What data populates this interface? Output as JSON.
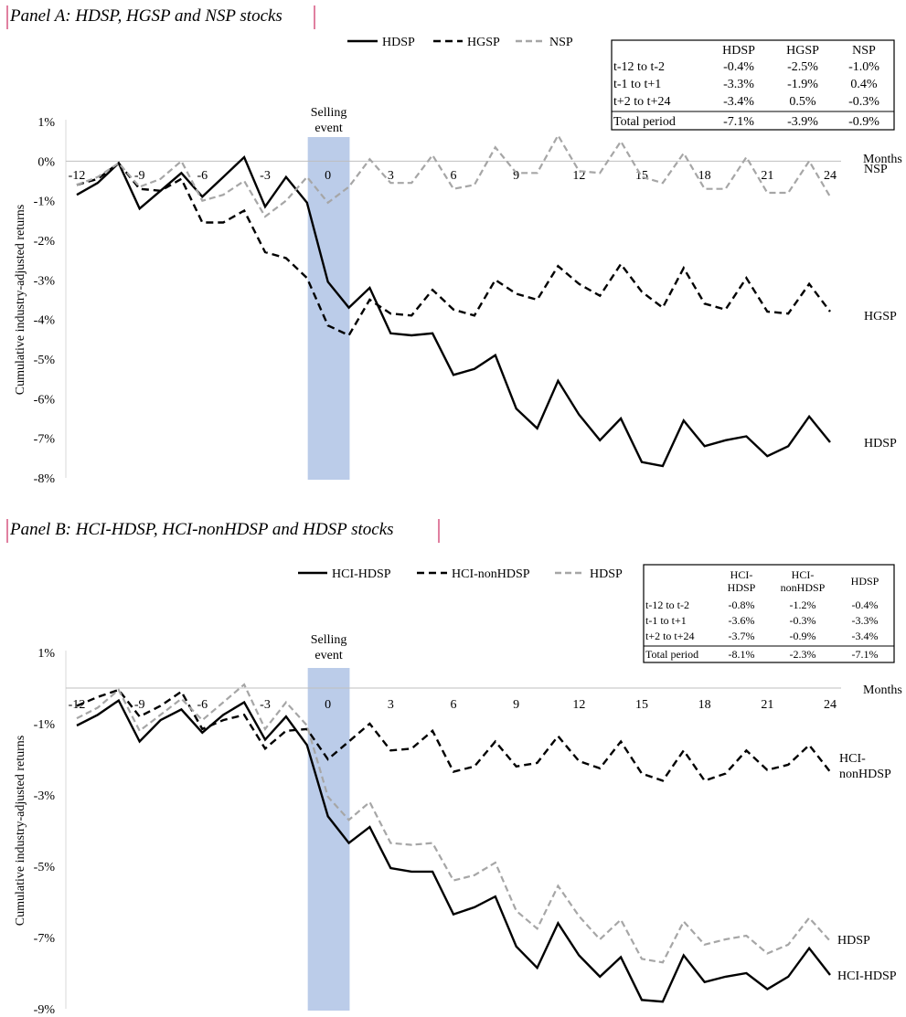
{
  "chart_data": [
    {
      "type": "line",
      "title": "Panel A: HDSP, HGSP and NSP stocks",
      "ylabel": "Cumulative industry-adjusted returns",
      "xlabel": "Months",
      "ylim": [
        -8,
        1
      ],
      "yticks": [
        "1%",
        "0%",
        "-1%",
        "-2%",
        "-3%",
        "-4%",
        "-5%",
        "-6%",
        "-7%",
        "-8%"
      ],
      "ytick_values": [
        1,
        0,
        -1,
        -2,
        -3,
        -4,
        -5,
        -6,
        -7,
        -8
      ],
      "xticks": [
        "-12",
        "-9",
        "-6",
        "-3",
        "0",
        "3",
        "6",
        "9",
        "12",
        "15",
        "18",
        "21",
        "24"
      ],
      "xtick_values": [
        -12,
        -9,
        -6,
        -3,
        0,
        3,
        6,
        9,
        12,
        15,
        18,
        21,
        24
      ],
      "xlim": [
        -12,
        24
      ],
      "event_band": [
        0,
        2
      ],
      "event_label": [
        "Selling",
        "event"
      ],
      "grid": false,
      "legend": "top",
      "x": [
        -12,
        -11,
        -10,
        -9,
        -8,
        -7,
        -6,
        -5,
        -4,
        -3,
        -2,
        -1,
        0,
        1,
        2,
        3,
        4,
        5,
        6,
        7,
        8,
        9,
        10,
        11,
        12,
        13,
        14,
        15,
        16,
        17,
        18,
        19,
        20,
        21,
        22,
        23,
        24
      ],
      "series": [
        {
          "name": "HDSP",
          "style": "solid",
          "color": "#000000",
          "end_label": "HDSP",
          "values": [
            -0.85,
            -0.55,
            -0.05,
            -1.2,
            -0.75,
            -0.3,
            -0.9,
            -0.4,
            0.1,
            -1.15,
            -0.4,
            -1.05,
            -3.05,
            -3.7,
            -3.2,
            -4.35,
            -4.4,
            -4.35,
            -5.4,
            -5.25,
            -4.9,
            -6.25,
            -6.75,
            -5.55,
            -6.4,
            -7.05,
            -6.5,
            -7.6,
            -7.7,
            -6.55,
            -7.2,
            -7.05,
            -6.95,
            -7.45,
            -7.2,
            -6.45,
            -7.1
          ]
        },
        {
          "name": "HGSP",
          "style": "dashed",
          "color": "#000000",
          "end_label": "HGSP",
          "values": [
            -0.6,
            -0.45,
            -0.05,
            -0.7,
            -0.75,
            -0.45,
            -1.55,
            -1.55,
            -1.25,
            -2.3,
            -2.45,
            -2.95,
            -4.15,
            -4.4,
            -3.5,
            -3.85,
            -3.9,
            -3.25,
            -3.75,
            -3.9,
            -3.0,
            -3.35,
            -3.5,
            -2.65,
            -3.1,
            -3.4,
            -2.6,
            -3.3,
            -3.7,
            -2.7,
            -3.6,
            -3.75,
            -2.95,
            -3.8,
            -3.85,
            -3.1,
            -3.8
          ]
        },
        {
          "name": "NSP",
          "style": "dashed",
          "color": "#a6a6a6",
          "end_label": "NSP",
          "values": [
            -0.6,
            -0.4,
            -0.05,
            -0.65,
            -0.45,
            0.0,
            -1.0,
            -0.85,
            -0.5,
            -1.4,
            -1.0,
            -0.4,
            -1.05,
            -0.65,
            0.05,
            -0.55,
            -0.55,
            0.15,
            -0.7,
            -0.6,
            0.35,
            -0.3,
            -0.3,
            0.65,
            -0.25,
            -0.3,
            0.5,
            -0.4,
            -0.55,
            0.2,
            -0.7,
            -0.7,
            0.1,
            -0.8,
            -0.8,
            0.0,
            -0.9
          ]
        }
      ],
      "table": {
        "header": [
          "",
          "HDSP",
          "HGSP",
          "NSP"
        ],
        "rows": [
          [
            "t-12 to t-2",
            "-0.4%",
            "-2.5%",
            "-1.0%"
          ],
          [
            "t-1 to t+1",
            "-3.3%",
            "-1.9%",
            "0.4%"
          ],
          [
            "t+2 to t+24",
            "-3.4%",
            "0.5%",
            "-0.3%"
          ],
          [
            "Total period",
            "-7.1%",
            "-3.9%",
            "-0.9%"
          ]
        ]
      }
    },
    {
      "type": "line",
      "title": "Panel B: HCI-HDSP, HCI-nonHDSP and HDSP stocks",
      "ylabel": "Cumulative industry-adjusted returns",
      "xlabel": "Months",
      "ylim": [
        -9,
        1
      ],
      "yticks": [
        "1%",
        "-1%",
        "-3%",
        "-5%",
        "-7%",
        "-9%"
      ],
      "ytick_values": [
        1,
        -1,
        -3,
        -5,
        -7,
        -9
      ],
      "xticks": [
        "-12",
        "-9",
        "-6",
        "-3",
        "0",
        "3",
        "6",
        "9",
        "12",
        "15",
        "18",
        "21",
        "24"
      ],
      "xtick_values": [
        -12,
        -9,
        -6,
        -3,
        0,
        3,
        6,
        9,
        12,
        15,
        18,
        21,
        24
      ],
      "xlim": [
        -12,
        24
      ],
      "event_band": [
        0,
        2
      ],
      "event_label": [
        "Selling",
        "event"
      ],
      "grid": false,
      "legend": "top",
      "x": [
        -12,
        -11,
        -10,
        -9,
        -8,
        -7,
        -6,
        -5,
        -4,
        -3,
        -2,
        -1,
        0,
        1,
        2,
        3,
        4,
        5,
        6,
        7,
        8,
        9,
        10,
        11,
        12,
        13,
        14,
        15,
        16,
        17,
        18,
        19,
        20,
        21,
        22,
        23,
        24
      ],
      "series": [
        {
          "name": "HCI-HDSP",
          "style": "solid",
          "color": "#000000",
          "end_label": [
            "HCI-HDSP"
          ],
          "values": [
            -1.05,
            -0.75,
            -0.35,
            -1.5,
            -0.9,
            -0.6,
            -1.25,
            -0.75,
            -0.4,
            -1.45,
            -0.8,
            -1.6,
            -3.6,
            -4.35,
            -3.9,
            -5.05,
            -5.15,
            -5.15,
            -6.35,
            -6.15,
            -5.85,
            -7.25,
            -7.85,
            -6.6,
            -7.5,
            -8.1,
            -7.55,
            -8.75,
            -8.8,
            -7.5,
            -8.25,
            -8.1,
            -8.0,
            -8.45,
            -8.1,
            -7.3,
            -8.05
          ]
        },
        {
          "name": "HCI-nonHDSP",
          "style": "dashed",
          "color": "#000000",
          "end_label": [
            "HCI-",
            "nonHDSP"
          ],
          "values": [
            -0.5,
            -0.25,
            -0.05,
            -0.8,
            -0.5,
            -0.1,
            -1.15,
            -0.9,
            -0.75,
            -1.7,
            -1.2,
            -1.15,
            -2.0,
            -1.5,
            -1.0,
            -1.75,
            -1.7,
            -1.2,
            -2.35,
            -2.2,
            -1.5,
            -2.2,
            -2.1,
            -1.35,
            -2.05,
            -2.25,
            -1.5,
            -2.4,
            -2.6,
            -1.75,
            -2.6,
            -2.4,
            -1.75,
            -2.3,
            -2.15,
            -1.6,
            -2.35
          ]
        },
        {
          "name": "HDSP",
          "style": "dashed",
          "color": "#a6a6a6",
          "end_label": [
            "HDSP"
          ],
          "values": [
            -0.85,
            -0.55,
            -0.05,
            -1.2,
            -0.75,
            -0.3,
            -0.9,
            -0.4,
            0.1,
            -1.15,
            -0.4,
            -1.05,
            -3.05,
            -3.7,
            -3.2,
            -4.35,
            -4.4,
            -4.35,
            -5.4,
            -5.25,
            -4.9,
            -6.25,
            -6.75,
            -5.55,
            -6.4,
            -7.05,
            -6.5,
            -7.6,
            -7.7,
            -6.55,
            -7.2,
            -7.05,
            -6.95,
            -7.45,
            -7.2,
            -6.45,
            -7.1
          ]
        }
      ],
      "table": {
        "header": [
          "",
          [
            "HCI-",
            "HDSP"
          ],
          [
            "HCI-",
            "nonHDSP"
          ],
          [
            "HDSP"
          ]
        ],
        "rows": [
          [
            "t-12 to t-2",
            "-0.8%",
            "-1.2%",
            "-0.4%"
          ],
          [
            "t-1 to t+1",
            "-3.6%",
            "-0.3%",
            "-3.3%"
          ],
          [
            "t+2 to t+24",
            "-3.7%",
            "-0.9%",
            "-3.4%"
          ],
          [
            "Total period",
            "-8.1%",
            "-2.3%",
            "-7.1%"
          ]
        ]
      }
    }
  ]
}
